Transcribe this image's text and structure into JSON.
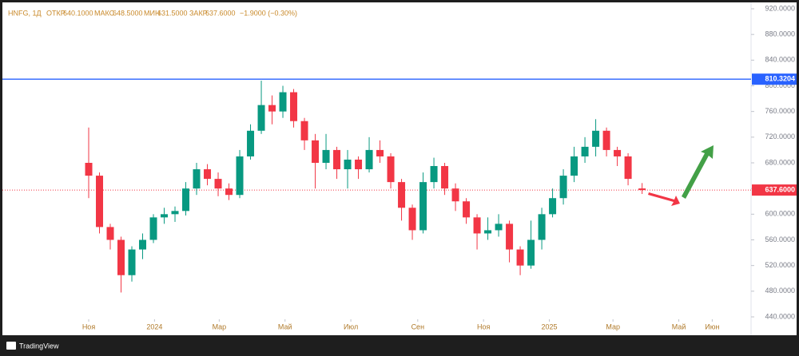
{
  "chart_data": {
    "type": "candlestick",
    "legend": {
      "symbol": "HNFG, 1Д",
      "open_label": "ОТКР",
      "open": "640.1000",
      "high_label": "МАКС",
      "high": "648.5000",
      "low_label": "МИН",
      "low": "631.5000",
      "close_label": "ЗАКР",
      "close": "637.6000",
      "change": "−1.9000 (−0.30%)"
    },
    "x": [
      0,
      10,
      20,
      30,
      40,
      50,
      60,
      70,
      80,
      90,
      100,
      110,
      120,
      130,
      140,
      150,
      160,
      170,
      180,
      190,
      200,
      210,
      220,
      230,
      240,
      250,
      260,
      270,
      280,
      290,
      300,
      310,
      320,
      330,
      340,
      350,
      360,
      370,
      380,
      390,
      400,
      410,
      420,
      430,
      440,
      450,
      460,
      470,
      480,
      490,
      500,
      513
    ],
    "open": [
      680,
      660,
      580,
      560,
      505,
      545,
      560,
      595,
      600,
      605,
      640,
      670,
      655,
      640,
      630,
      690,
      730,
      770,
      760,
      790,
      745,
      715,
      680,
      700,
      670,
      685,
      670,
      700,
      690,
      650,
      610,
      575,
      650,
      675,
      640,
      620,
      595,
      570,
      575,
      585,
      545,
      520,
      560,
      600,
      625,
      660,
      690,
      705,
      730,
      700,
      690,
      640.1
    ],
    "high": [
      735,
      665,
      585,
      565,
      550,
      570,
      600,
      610,
      612,
      650,
      680,
      678,
      665,
      648,
      700,
      740,
      808,
      785,
      800,
      795,
      750,
      725,
      725,
      705,
      700,
      690,
      720,
      715,
      695,
      655,
      615,
      665,
      688,
      680,
      648,
      625,
      600,
      595,
      600,
      590,
      550,
      590,
      610,
      640,
      670,
      705,
      720,
      748,
      735,
      705,
      695,
      648.5
    ],
    "low": [
      625,
      570,
      545,
      478,
      495,
      530,
      555,
      585,
      588,
      598,
      630,
      645,
      628,
      622,
      625,
      685,
      725,
      740,
      750,
      735,
      700,
      640,
      670,
      655,
      640,
      655,
      665,
      680,
      640,
      590,
      560,
      570,
      640,
      630,
      605,
      585,
      545,
      560,
      565,
      525,
      505,
      515,
      545,
      595,
      615,
      650,
      680,
      690,
      690,
      675,
      645,
      631.5
    ],
    "close": [
      660,
      580,
      560,
      505,
      545,
      560,
      595,
      600,
      605,
      640,
      670,
      655,
      640,
      630,
      690,
      730,
      770,
      760,
      790,
      745,
      715,
      680,
      700,
      670,
      685,
      670,
      700,
      690,
      650,
      610,
      575,
      650,
      675,
      640,
      620,
      595,
      570,
      575,
      585,
      545,
      520,
      560,
      600,
      625,
      660,
      690,
      705,
      730,
      700,
      690,
      655,
      637.6
    ],
    "up_color": "#089981",
    "down_color": "#f23645",
    "xlim": [
      -80,
      614
    ],
    "xticks": [
      {
        "value": 0,
        "label": "Ноя"
      },
      {
        "value": 61,
        "label": "2024"
      },
      {
        "value": 121,
        "label": "Мар"
      },
      {
        "value": 182,
        "label": "Май"
      },
      {
        "value": 243,
        "label": "Июл"
      },
      {
        "value": 305,
        "label": "Сен"
      },
      {
        "value": 366,
        "label": "Ноя"
      },
      {
        "value": 427,
        "label": "2025"
      },
      {
        "value": 486,
        "label": "Мар"
      },
      {
        "value": 547,
        "label": "Май"
      },
      {
        "value": 578,
        "label": "Июн"
      }
    ],
    "ylim": [
      440,
      920
    ],
    "yticks": [
      {
        "value": 440,
        "label": "440.0000"
      },
      {
        "value": 480,
        "label": "480.0000"
      },
      {
        "value": 520,
        "label": "520.0000"
      },
      {
        "value": 560,
        "label": "560.0000"
      },
      {
        "value": 600,
        "label": "600.0000"
      },
      {
        "value": 640,
        "label": "640.0000"
      },
      {
        "value": 680,
        "label": "680.0000"
      },
      {
        "value": 720,
        "label": "720.0000"
      },
      {
        "value": 760,
        "label": "760.0000"
      },
      {
        "value": 800,
        "label": "800.0000"
      },
      {
        "value": 840,
        "label": "840.0000"
      },
      {
        "value": 880,
        "label": "880.0000"
      },
      {
        "value": 920,
        "label": "920.0000"
      }
    ],
    "levels": [
      {
        "value": 810.3204,
        "label": "810.3204",
        "color": "#2962ff",
        "style": "solid"
      },
      {
        "value": 637.6,
        "label": "637.6000",
        "color": "#f23645",
        "style": "dotted"
      }
    ],
    "brand": "TradingView"
  }
}
